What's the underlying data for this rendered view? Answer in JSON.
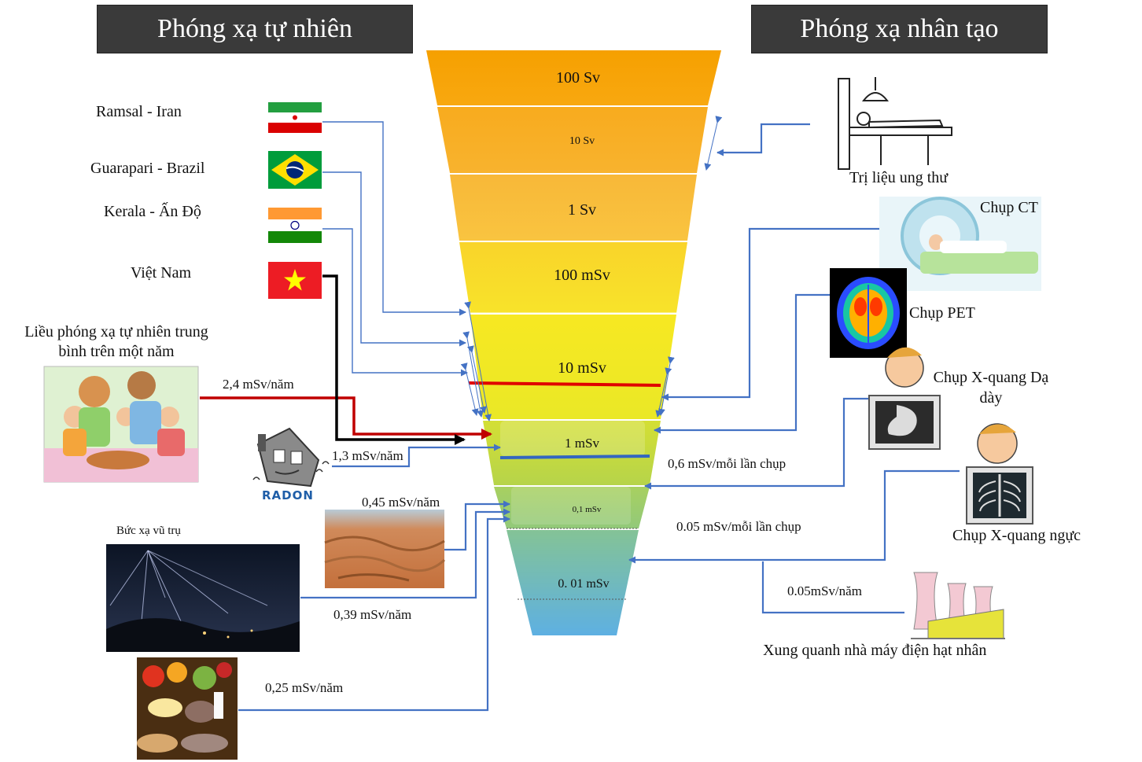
{
  "headers": {
    "natural": "Phóng xạ tự nhiên",
    "artificial": "Phóng xạ nhân tạo"
  },
  "funnel": {
    "levels": [
      "100 Sv",
      "10 Sv",
      "1 Sv",
      "100 mSv",
      "10 mSv",
      "1 mSv",
      "0,1 mSv",
      "0. 01 mSv"
    ],
    "colors": [
      "#f7a400",
      "#f9ad1f",
      "#f8bb3b",
      "#f9df2e",
      "#f7ec1f",
      "#c3d83a",
      "#a2cf64",
      "#69b7d6"
    ]
  },
  "natural": {
    "places": [
      {
        "name": "Ramsal - Iran",
        "flag": "iran-flag-icon"
      },
      {
        "name": "Guarapari - Brazil",
        "flag": "brazil-flag-icon"
      },
      {
        "name": "Kerala  - Ấn Độ",
        "flag": "india-flag-icon"
      },
      {
        "name": "Việt Nam",
        "flag": "vietnam-flag-icon"
      }
    ],
    "average_label": "Liều phóng xạ tự nhiên trung bình trên một năm",
    "average_value": "2,4 mSv/năm",
    "radon_value": "1,3 mSv/năm",
    "radon_text": "RADON",
    "soil_value": "0,45 mSv/năm",
    "cosmic_label": "Bức xạ vũ trụ",
    "cosmic_value": "0,39 mSv/năm",
    "food_value": "0,25 mSv/năm"
  },
  "artificial": {
    "therapy": "Trị liệu ung thư",
    "ct": "Chụp CT",
    "pet": "Chụp PET",
    "xray_stomach": "Chụp X-quang Dạ dày",
    "xray_chest": "Chụp X-quang ngực",
    "stomach_dose": "0,6 mSv/mỗi lần chụp",
    "chest_dose": "0.05 mSv/mỗi lần chụp",
    "plant_dose": "0.05mSv/năm",
    "plant": "Xung quanh nhà máy điện hạt nhân"
  },
  "colors": {
    "arrow_blue": "#4472c4",
    "avg_red": "#c00000",
    "vietnam_black": "#000000",
    "header_bg": "#3a3a3a"
  }
}
